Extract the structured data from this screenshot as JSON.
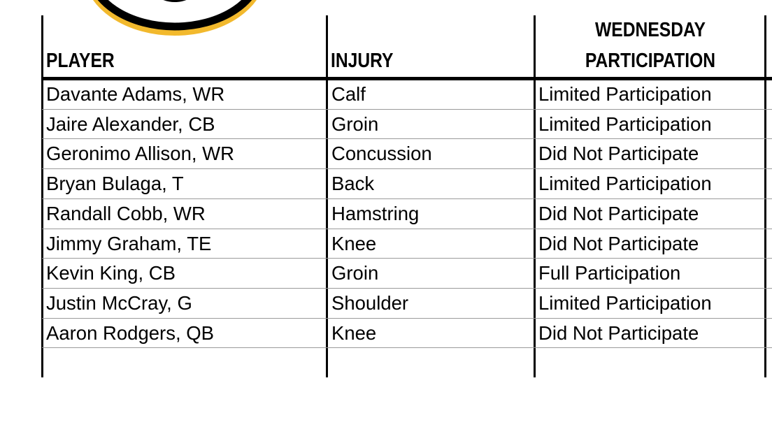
{
  "logo": {
    "colors": {
      "ring": "#000000",
      "outline": "#f2b92d"
    }
  },
  "table": {
    "headers": {
      "player": "PLAYER",
      "injury": "INJURY",
      "participation_line1": "WEDNESDAY",
      "participation_line2": "PARTICIPATION"
    },
    "rows": [
      {
        "player": "Davante Adams, WR",
        "injury": "Calf",
        "status": "Limited Participation"
      },
      {
        "player": "Jaire Alexander, CB",
        "injury": "Groin",
        "status": "Limited Participation"
      },
      {
        "player": "Geronimo Allison, WR",
        "injury": "Concussion",
        "status": "Did Not Participate"
      },
      {
        "player": "Bryan Bulaga, T",
        "injury": "Back",
        "status": "Limited Participation"
      },
      {
        "player": "Randall Cobb, WR",
        "injury": "Hamstring",
        "status": "Did Not Participate"
      },
      {
        "player": "Jimmy Graham, TE",
        "injury": "Knee",
        "status": "Did Not Participate"
      },
      {
        "player": "Kevin King, CB",
        "injury": "Groin",
        "status": "Full Participation"
      },
      {
        "player": "Justin McCray, G",
        "injury": "Shoulder",
        "status": "Limited Participation"
      },
      {
        "player": "Aaron Rodgers, QB",
        "injury": "Knee",
        "status": "Did Not Participate"
      }
    ]
  }
}
